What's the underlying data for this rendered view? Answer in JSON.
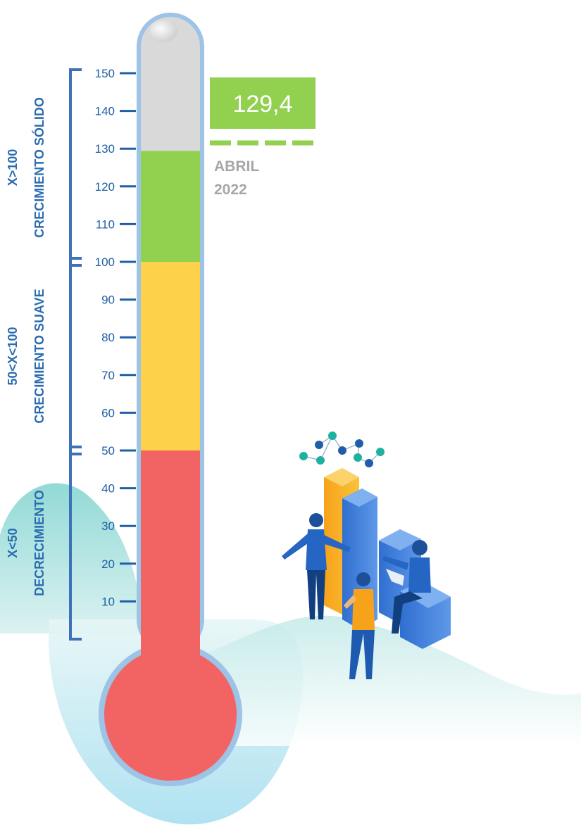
{
  "chart_data": {
    "type": "thermometer",
    "ylim": [
      0,
      150
    ],
    "ticks": [
      {
        "value": 150,
        "label": "150"
      },
      {
        "value": 140,
        "label": "140"
      },
      {
        "value": 130,
        "label": "130"
      },
      {
        "value": 120,
        "label": "120"
      },
      {
        "value": 110,
        "label": "110"
      },
      {
        "value": 100,
        "label": "100"
      },
      {
        "value": 90,
        "label": "90"
      },
      {
        "value": 80,
        "label": "80"
      },
      {
        "value": 70,
        "label": "70"
      },
      {
        "value": 60,
        "label": "60"
      },
      {
        "value": 50,
        "label": "50"
      },
      {
        "value": 40,
        "label": "40"
      },
      {
        "value": 30,
        "label": "30"
      },
      {
        "value": 20,
        "label": "20"
      },
      {
        "value": 10,
        "label": "10"
      }
    ],
    "zones": [
      {
        "range": [
          0,
          50
        ],
        "color": "#f26463",
        "line1": "X<50",
        "line2": "DECRECIMIENTO"
      },
      {
        "range": [
          50,
          100
        ],
        "color": "#fdd14a",
        "line1": "50<X<100",
        "line2": "CRECIMIENTO SUAVE"
      },
      {
        "range": [
          100,
          150
        ],
        "color": "#92d050",
        "line1": "X>100",
        "line2": "CRECIMIENTO SÓLIDO"
      }
    ],
    "current": {
      "value": 129.4,
      "label": "129,4",
      "date_line1": "ABRIL",
      "date_line2": "2022",
      "color": "#92d050"
    },
    "empty_color": "#d9d9d9",
    "tube_border_color": "#9dc3e6",
    "tick_color": "#1f5fa8"
  },
  "decor": {
    "illustration": "business-team-chart-illustration",
    "background": "teal-wave-shapes"
  }
}
